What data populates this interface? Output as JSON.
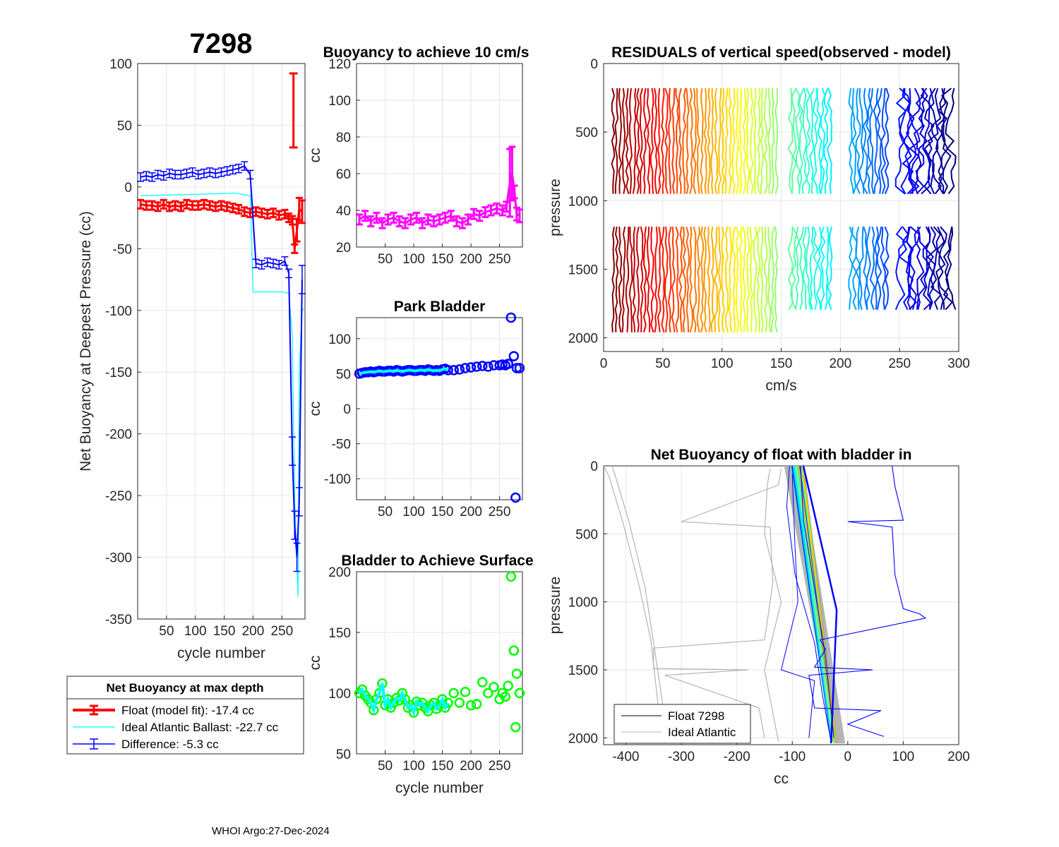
{
  "float_id": "7298",
  "footer": "WHOI Argo:27-Dec-2024",
  "colors": {
    "float": "#ff0000",
    "ideal": "#00ffff",
    "difference": "#0000ff",
    "buoy10": "#ff00ff",
    "park": "#0000ff",
    "park_mean": "#00ffff",
    "surface": "#00ff00",
    "surface_mean": "#00ffff",
    "grey": "#b4b4b4"
  },
  "chart_data": [
    {
      "id": "main",
      "type": "line",
      "title": "",
      "xlabel": "cycle number",
      "ylabel": "Net Buoyancy at Deepest Pressure (cc)",
      "xlim": [
        0,
        290
      ],
      "ylim": [
        -350,
        100
      ],
      "xticks": [
        50,
        100,
        150,
        200,
        250
      ],
      "yticks": [
        100,
        50,
        0,
        -50,
        -100,
        -150,
        -200,
        -250,
        -300,
        -350
      ],
      "series": [
        {
          "name": "Float (model fit)",
          "color": "red",
          "x": [
            5,
            15,
            25,
            35,
            45,
            55,
            65,
            75,
            85,
            95,
            105,
            115,
            125,
            135,
            145,
            155,
            165,
            175,
            185,
            195,
            205,
            215,
            225,
            235,
            245,
            255,
            262,
            268,
            272,
            276,
            280,
            285
          ],
          "y": [
            -14,
            -15,
            -15,
            -16,
            -14,
            -16,
            -15,
            -16,
            -14,
            -15,
            -15,
            -14,
            -15,
            -16,
            -15,
            -16,
            -17,
            -18,
            -20,
            -21,
            -20,
            -21,
            -22,
            -21,
            -23,
            -22,
            -25,
            -27,
            -50,
            -35,
            -18,
            -20
          ]
        },
        {
          "name": "Ideal Atlantic Ballast",
          "color": "cyan",
          "x": [
            5,
            100,
            170,
            195,
            200,
            250,
            262,
            268,
            272,
            278,
            280,
            285,
            290
          ],
          "y": [
            -7,
            -6,
            -5,
            -7,
            -85,
            -85,
            -86,
            -120,
            -250,
            -332,
            -150,
            -100,
            -98
          ]
        },
        {
          "name": "Difference",
          "color": "blue",
          "x": [
            5,
            15,
            25,
            35,
            45,
            55,
            65,
            75,
            85,
            95,
            105,
            115,
            125,
            135,
            145,
            155,
            165,
            175,
            185,
            195,
            205,
            215,
            225,
            235,
            245,
            255,
            262,
            268,
            272,
            276,
            280,
            285
          ],
          "y": [
            8,
            9,
            8,
            10,
            9,
            11,
            10,
            10,
            11,
            12,
            10,
            11,
            12,
            11,
            12,
            13,
            14,
            15,
            17,
            10,
            -62,
            -63,
            -61,
            -62,
            -63,
            -60,
            -70,
            -214,
            -274,
            -300,
            -255,
            -75
          ]
        }
      ],
      "outlier_bar": {
        "x": 270,
        "y_low": 32,
        "y_high": 92
      }
    },
    {
      "id": "buoy10",
      "type": "line",
      "title": "Buoyancy to achieve 10 cm/s",
      "xlabel": "",
      "ylabel": "cc",
      "xlim": [
        0,
        290
      ],
      "ylim": [
        20,
        120
      ],
      "xticks": [
        50,
        100,
        150,
        200,
        250
      ],
      "yticks": [
        120,
        100,
        80,
        60,
        40,
        20
      ],
      "x": [
        5,
        15,
        25,
        35,
        45,
        55,
        65,
        75,
        85,
        95,
        105,
        115,
        125,
        135,
        145,
        155,
        165,
        175,
        185,
        195,
        205,
        215,
        225,
        235,
        245,
        255,
        262,
        268,
        272,
        276,
        280,
        285
      ],
      "y": [
        35,
        37,
        34,
        36,
        33,
        35,
        36,
        34,
        33,
        35,
        36,
        33,
        35,
        34,
        35,
        36,
        37,
        34,
        33,
        35,
        38,
        37,
        39,
        40,
        41,
        40,
        42,
        55,
        60,
        50,
        38,
        37
      ]
    },
    {
      "id": "park",
      "type": "scatter",
      "title": "Park Bladder",
      "xlabel": "",
      "ylabel": "cc",
      "xlim": [
        0,
        290
      ],
      "ylim": [
        -130,
        130
      ],
      "xticks": [
        50,
        100,
        150,
        200,
        250
      ],
      "yticks": [
        100,
        50,
        0,
        -50,
        -100
      ],
      "x": [
        5,
        10,
        15,
        20,
        25,
        30,
        35,
        40,
        45,
        50,
        55,
        60,
        65,
        70,
        75,
        80,
        85,
        90,
        95,
        100,
        105,
        110,
        115,
        120,
        125,
        130,
        135,
        140,
        145,
        150,
        155,
        160,
        170,
        180,
        190,
        200,
        210,
        220,
        230,
        240,
        250,
        255,
        260,
        265,
        270,
        275,
        278,
        280,
        285
      ],
      "y": [
        50,
        51,
        52,
        52,
        53,
        52,
        53,
        54,
        53,
        53,
        54,
        54,
        53,
        55,
        54,
        53,
        54,
        55,
        55,
        54,
        54,
        55,
        55,
        54,
        56,
        55,
        54,
        55,
        54,
        56,
        57,
        55,
        55,
        56,
        58,
        59,
        60,
        61,
        60,
        62,
        62,
        63,
        62,
        64,
        130,
        75,
        -127,
        58,
        58
      ]
    },
    {
      "id": "surface",
      "type": "scatter",
      "title": "Bladder to Achieve Surface",
      "xlabel": "cycle number",
      "ylabel": "cc",
      "xlim": [
        0,
        290
      ],
      "ylim": [
        50,
        200
      ],
      "xticks": [
        50,
        100,
        150,
        200,
        250
      ],
      "yticks": [
        200,
        150,
        100,
        50
      ],
      "x": [
        5,
        10,
        15,
        20,
        25,
        30,
        35,
        40,
        45,
        50,
        55,
        60,
        65,
        70,
        75,
        80,
        85,
        90,
        95,
        100,
        105,
        110,
        115,
        120,
        125,
        130,
        135,
        140,
        145,
        150,
        155,
        160,
        170,
        180,
        190,
        200,
        210,
        220,
        230,
        240,
        250,
        255,
        260,
        265,
        270,
        275,
        278,
        280,
        285
      ],
      "y": [
        100,
        103,
        98,
        95,
        92,
        86,
        95,
        100,
        108,
        90,
        95,
        88,
        92,
        96,
        94,
        100,
        95,
        88,
        90,
        84,
        93,
        90,
        92,
        88,
        85,
        90,
        92,
        87,
        90,
        95,
        88,
        92,
        100,
        92,
        101,
        90,
        91,
        109,
        100,
        105,
        95,
        100,
        97,
        106,
        196,
        135,
        72,
        116,
        100
      ]
    },
    {
      "id": "residuals",
      "type": "line",
      "title": "RESIDUALS of vertical speed(observed - model)",
      "xlabel": "cm/s",
      "ylabel": "pressure",
      "xlim": [
        0,
        300
      ],
      "ylim": [
        2100,
        0
      ],
      "xticks": [
        0,
        50,
        100,
        150,
        200,
        250,
        300
      ],
      "yticks": [
        0,
        500,
        1000,
        1500,
        2000
      ]
    },
    {
      "id": "netbuoy",
      "type": "line",
      "title": "Net Buoyancy of float with bladder in",
      "xlabel": "cc",
      "ylabel": "pressure",
      "xlim": [
        -440,
        200
      ],
      "ylim": [
        2050,
        0
      ],
      "xticks": [
        -400,
        -300,
        -200,
        -100,
        0,
        100,
        200
      ],
      "yticks": [
        0,
        500,
        1000,
        1500,
        2000
      ],
      "legend": [
        "Float 7298",
        "Ideal Atlantic"
      ]
    }
  ],
  "legend_box": {
    "title": "Net Buoyancy at max depth",
    "entries": [
      {
        "label": "Float (model fit): -17.4 cc",
        "color": "#ff0000"
      },
      {
        "label": "Ideal Atlantic Ballast: -22.7 cc",
        "color": "#00ffff"
      },
      {
        "label": "Difference:  -5.3 cc",
        "color": "#0000ff"
      }
    ]
  }
}
